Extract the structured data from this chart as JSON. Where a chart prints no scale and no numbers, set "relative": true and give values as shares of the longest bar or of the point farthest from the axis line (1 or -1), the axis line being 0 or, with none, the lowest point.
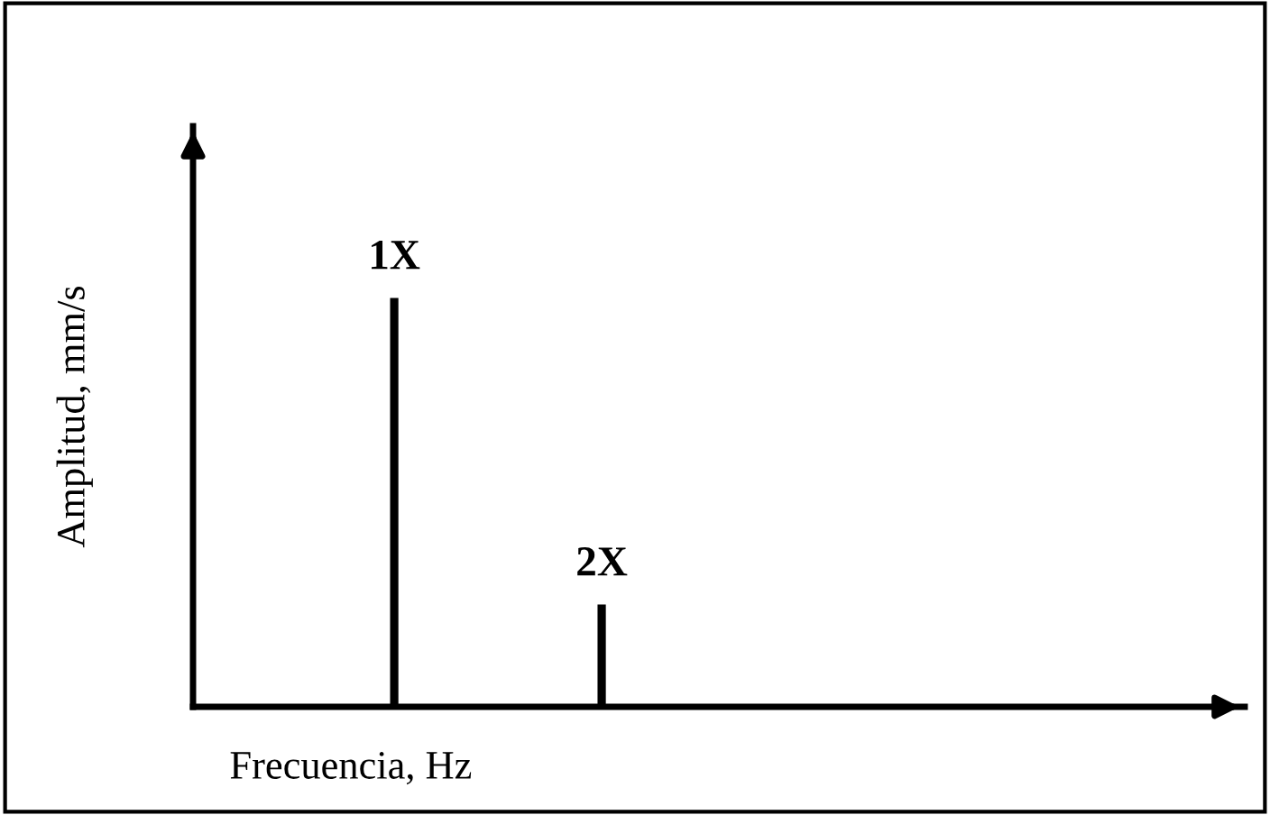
{
  "chart_data": {
    "type": "bar",
    "relative": true,
    "xlabel": "Frecuencia, Hz",
    "ylabel": "Amplitud, mm/s",
    "categories": [
      null,
      null
    ],
    "values": [
      1,
      0.25
    ],
    "annotations": [
      "1X",
      "2X"
    ],
    "color": "#000000"
  }
}
